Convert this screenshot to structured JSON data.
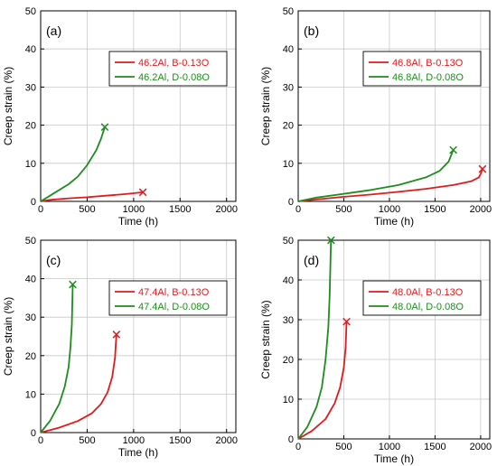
{
  "colors": {
    "red": "#e31a1c",
    "green": "#1e8c1e",
    "grid": "#c8c8c8",
    "axis": "#000000"
  },
  "chart_data": [
    {
      "type": "line",
      "label": "(a)",
      "xlabel": "Time (h)",
      "ylabel": "Creep strain (%)",
      "xlim": [
        0,
        2100
      ],
      "ylim": [
        0,
        50
      ],
      "xticks": [
        "0",
        "500",
        "1000",
        "1500",
        "2000"
      ],
      "yticks": [
        "0",
        "10",
        "20",
        "30",
        "40",
        "50"
      ],
      "grid": true,
      "legend_position": "top-right",
      "series": [
        {
          "name": "46.2Al, B-0.13O",
          "color": "red",
          "x": [
            0,
            100,
            300,
            500,
            700,
            900,
            1100
          ],
          "y": [
            0,
            0.4,
            0.8,
            1.1,
            1.5,
            1.9,
            2.4
          ],
          "rupture": [
            1100,
            2.4
          ]
        },
        {
          "name": "46.2Al, D-0.08O",
          "color": "green",
          "x": [
            0,
            100,
            200,
            300,
            400,
            500,
            600,
            650,
            690
          ],
          "y": [
            0,
            1.5,
            3.0,
            4.5,
            6.5,
            9.5,
            13.5,
            16.5,
            19.5
          ],
          "rupture": [
            690,
            19.5
          ]
        }
      ]
    },
    {
      "type": "line",
      "label": "(b)",
      "xlabel": "Time (h)",
      "ylabel": "Creep strain (%)",
      "xlim": [
        0,
        2100
      ],
      "ylim": [
        0,
        50
      ],
      "xticks": [
        "0",
        "500",
        "1000",
        "1500",
        "2000"
      ],
      "yticks": [
        "0",
        "10",
        "20",
        "30",
        "40",
        "50"
      ],
      "grid": true,
      "legend_position": "top-right",
      "series": [
        {
          "name": "46.8Al, B-0.13O",
          "color": "red",
          "x": [
            0,
            200,
            500,
            800,
            1100,
            1400,
            1700,
            1900,
            1980,
            2000,
            2020
          ],
          "y": [
            0,
            0.5,
            1.2,
            1.8,
            2.5,
            3.3,
            4.3,
            5.3,
            6.3,
            7.2,
            8.5
          ],
          "rupture": [
            2020,
            8.5
          ]
        },
        {
          "name": "46.8Al, D-0.08O",
          "color": "green",
          "x": [
            0,
            200,
            500,
            800,
            1100,
            1400,
            1550,
            1650,
            1700
          ],
          "y": [
            0,
            1.0,
            2.0,
            3.0,
            4.3,
            6.3,
            8.0,
            10.5,
            13.5
          ],
          "rupture": [
            1700,
            13.5
          ]
        }
      ]
    },
    {
      "type": "line",
      "label": "(c)",
      "xlabel": "Time (h)",
      "ylabel": "Creep strain (%)",
      "xlim": [
        0,
        2100
      ],
      "ylim": [
        0,
        50
      ],
      "xticks": [
        "0",
        "500",
        "1000",
        "1500",
        "2000"
      ],
      "yticks": [
        "0",
        "10",
        "20",
        "30",
        "40",
        "50"
      ],
      "grid": true,
      "legend_position": "top-right",
      "series": [
        {
          "name": "47.4Al, B-0.13O",
          "color": "red",
          "x": [
            0,
            200,
            400,
            550,
            650,
            720,
            770,
            800,
            815
          ],
          "y": [
            0,
            1.3,
            3.0,
            5.0,
            7.5,
            10.5,
            14.5,
            19.5,
            25.5
          ],
          "rupture": [
            815,
            25.5
          ]
        },
        {
          "name": "47.4Al, D-0.08O",
          "color": "green",
          "x": [
            0,
            100,
            200,
            260,
            300,
            320,
            335,
            345
          ],
          "y": [
            0,
            3.0,
            7.5,
            12.0,
            17.0,
            22.0,
            28.0,
            38.5
          ],
          "rupture": [
            345,
            38.5
          ]
        }
      ]
    },
    {
      "type": "line",
      "label": "(d)",
      "xlabel": "Time (h)",
      "ylabel": "Creep strain (%)",
      "xlim": [
        0,
        2100
      ],
      "ylim": [
        0,
        50
      ],
      "xticks": [
        "0",
        "500",
        "1000",
        "1500",
        "2000"
      ],
      "yticks": [
        "0",
        "10",
        "20",
        "30",
        "40",
        "50"
      ],
      "grid": true,
      "legend_position": "top-right",
      "series": [
        {
          "name": "48.0Al, B-0.13O",
          "color": "red",
          "x": [
            0,
            150,
            300,
            400,
            460,
            500,
            520,
            530
          ],
          "y": [
            0,
            2.0,
            5.0,
            9.0,
            13.0,
            18.0,
            23.0,
            29.5
          ],
          "rupture": [
            530,
            29.5
          ]
        },
        {
          "name": "48.0Al, D-0.08O",
          "color": "green",
          "x": [
            0,
            100,
            200,
            260,
            300,
            330,
            345,
            360
          ],
          "y": [
            0,
            3.0,
            8.0,
            13.0,
            20.0,
            28.0,
            36.0,
            50.0
          ],
          "rupture": [
            360,
            50.0
          ]
        }
      ]
    }
  ]
}
